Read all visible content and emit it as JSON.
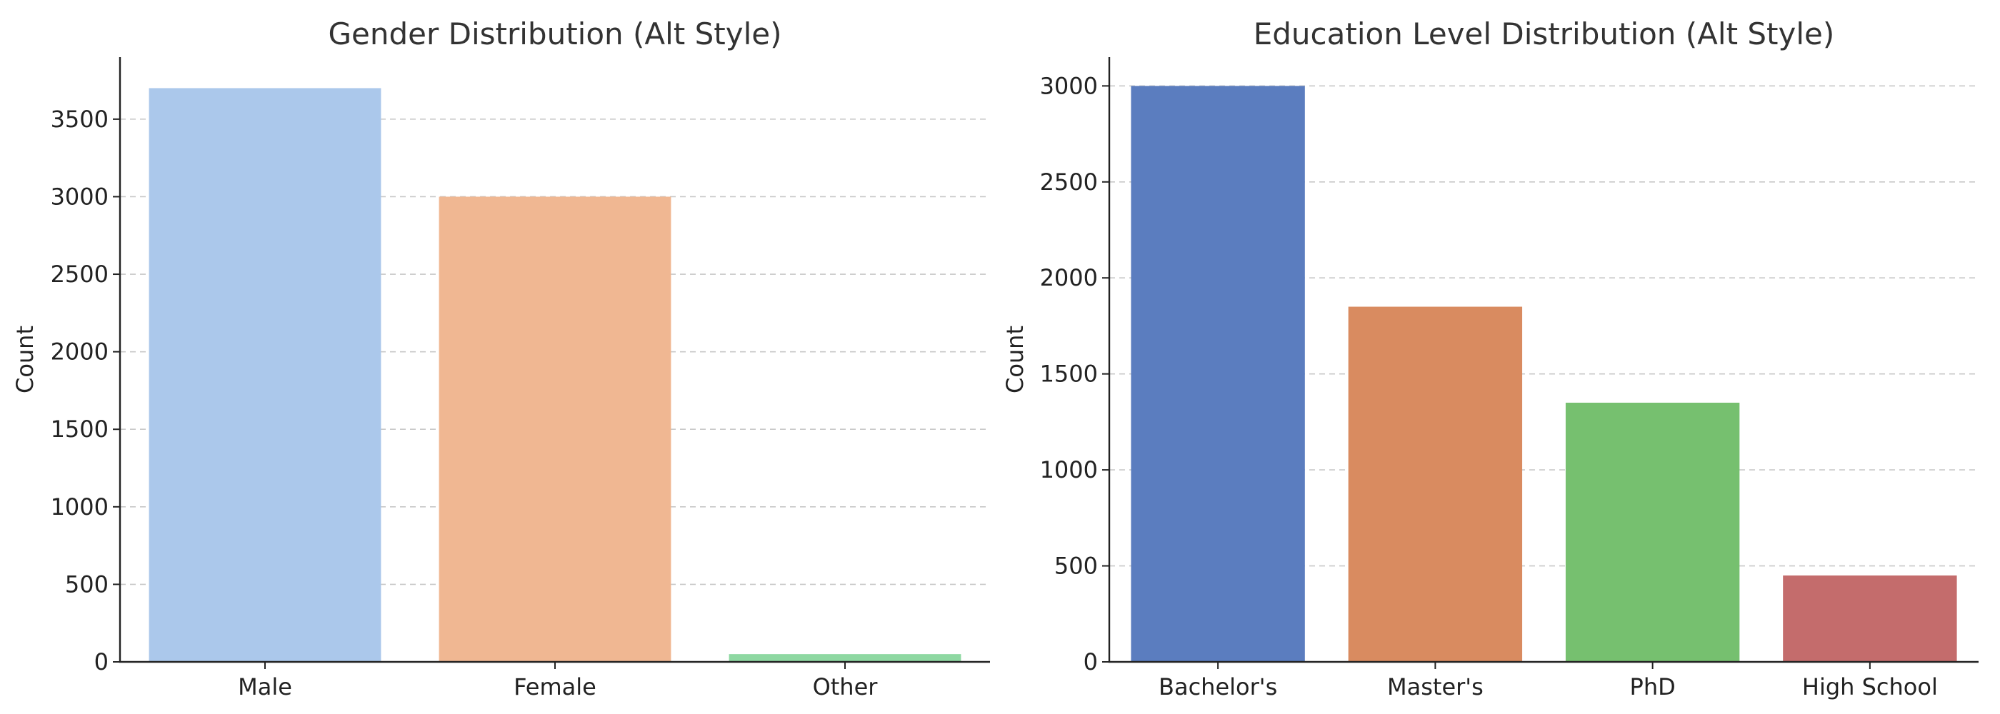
{
  "chart_data": [
    {
      "type": "bar",
      "title": "Gender Distribution (Alt Style)",
      "xlabel": "",
      "ylabel": "Count",
      "categories": [
        "Male",
        "Female",
        "Other"
      ],
      "values": [
        3700,
        3000,
        50
      ],
      "colors": [
        "#abc8eb",
        "#f0b792",
        "#8ed8a2"
      ],
      "ylim": [
        0,
        3900
      ],
      "yticks": [
        0,
        500,
        1000,
        1500,
        2000,
        2500,
        3000,
        3500
      ],
      "grid": "y-dashed",
      "legend": "none"
    },
    {
      "type": "bar",
      "title": "Education Level Distribution (Alt Style)",
      "xlabel": "",
      "ylabel": "Count",
      "categories": [
        "Bachelor's",
        "Master's",
        "PhD",
        "High School"
      ],
      "values": [
        3000,
        1850,
        1350,
        450
      ],
      "colors": [
        "#5b7dbf",
        "#d98b60",
        "#76c06f",
        "#c46c6c"
      ],
      "ylim": [
        0,
        3150
      ],
      "yticks": [
        0,
        500,
        1000,
        1500,
        2000,
        2500,
        3000
      ],
      "grid": "y-dashed",
      "legend": "none"
    }
  ]
}
